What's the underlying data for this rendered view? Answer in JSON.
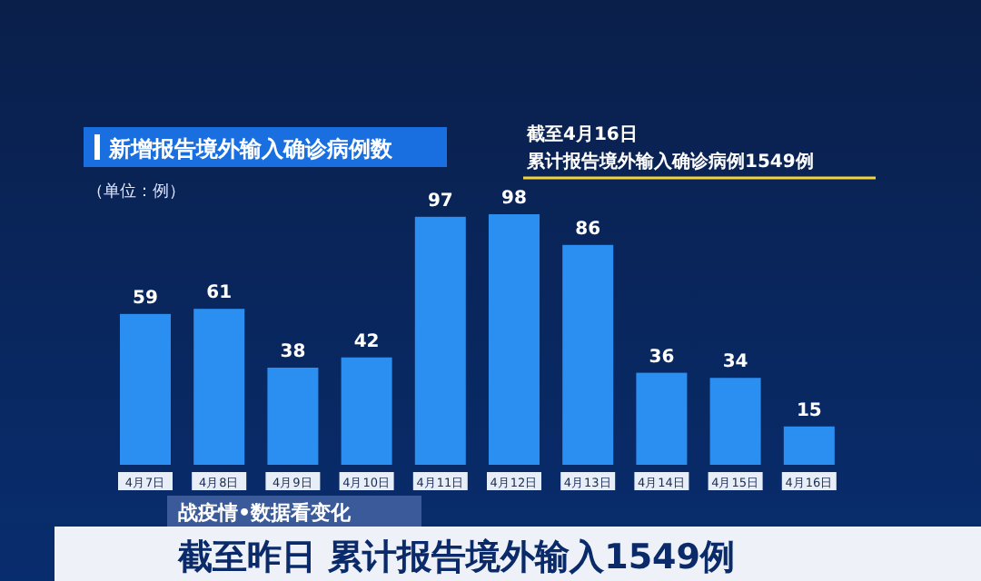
{
  "chart_data": {
    "type": "bar",
    "title": "新增报告境外输入确诊病例数",
    "categories": [
      "4月7日",
      "4月8日",
      "4月9日",
      "4月10日",
      "4月11日",
      "4月12日",
      "4月13日",
      "4月14日",
      "4月15日",
      "4月16日"
    ],
    "values": [
      59,
      61,
      38,
      42,
      97,
      98,
      86,
      36,
      34,
      15
    ],
    "color": "#2b8ff2",
    "data_labels": true,
    "annotations": [
      "（单位：例）",
      "截至4月16日",
      "累计报告境外输入确诊病例1549例",
      "战疫情•数据看变化",
      "截至昨日 累计报告境外输入1549例"
    ]
  }
}
